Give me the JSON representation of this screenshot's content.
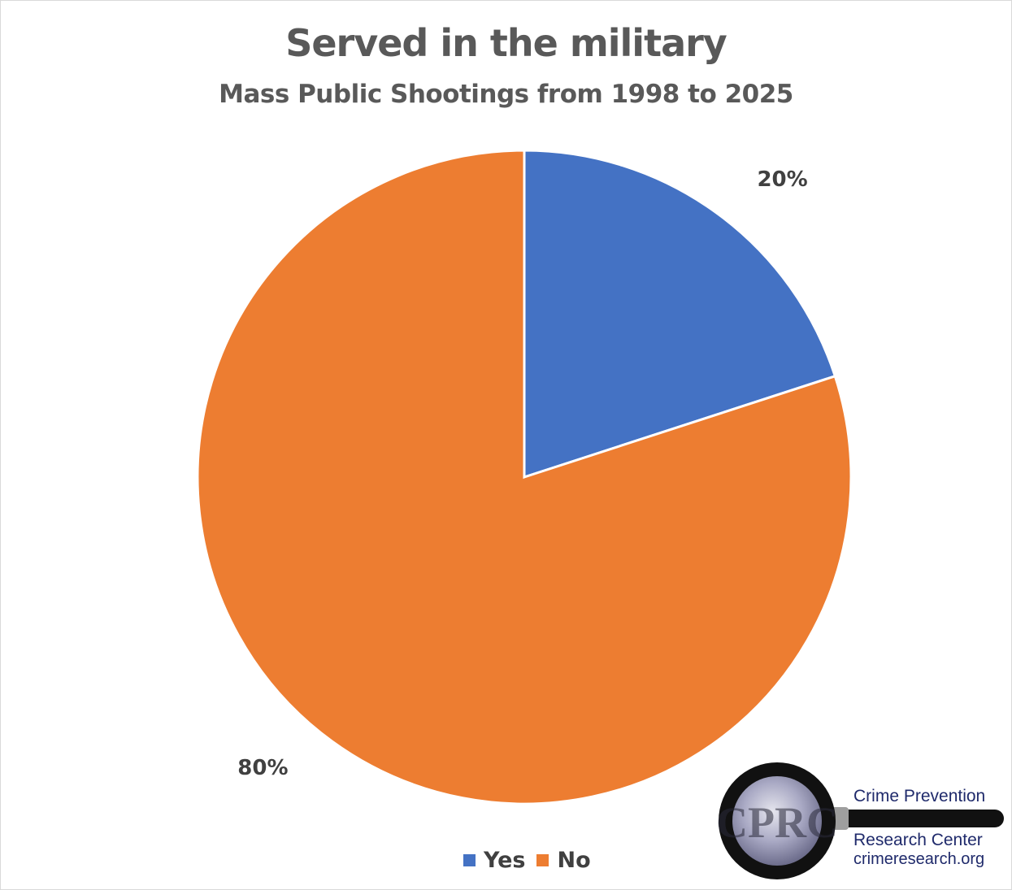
{
  "chart_data": {
    "type": "pie",
    "title": "Served in the military",
    "subtitle": "Mass Public Shootings from 1998 to 2025",
    "categories": [
      "Yes",
      "No"
    ],
    "values": [
      20,
      80
    ],
    "data_labels": [
      "20%",
      "80%"
    ],
    "colors": [
      "#4472c4",
      "#ed7d31"
    ],
    "legend_position": "bottom"
  },
  "logo": {
    "monogram": "CPRC",
    "name_line1": "Crime Prevention",
    "name_line2": "Research Center",
    "url": "crimeresearch.org"
  }
}
